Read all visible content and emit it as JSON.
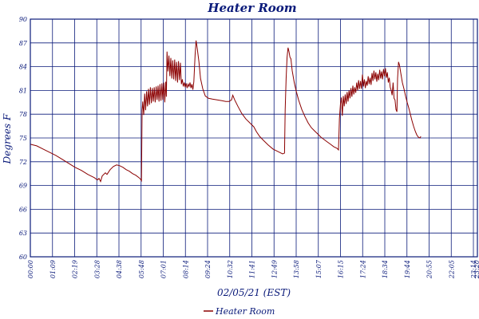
{
  "chart_data": {
    "type": "line",
    "title": "Heater Room",
    "xlabel": "02/05/21 (EST)",
    "ylabel": "Degrees F",
    "y_tick_labels": [
      "90",
      "87",
      "84",
      "81",
      "78",
      "75",
      "72",
      "69",
      "66",
      "63",
      "60"
    ],
    "y_tick_values": [
      90,
      87,
      84,
      81,
      78,
      75,
      72,
      69,
      66,
      63,
      60
    ],
    "x_tick_labels": [
      "00:00",
      "01:09",
      "02:19",
      "03:28",
      "04:38",
      "05:48",
      "07:01",
      "08:14",
      "09:24",
      "10:32",
      "11:41",
      "12:49",
      "13:58",
      "15:07",
      "16:15",
      "17:24",
      "18:34",
      "19:44",
      "20:55",
      "22:05",
      "23:14",
      "23:20"
    ],
    "ylim": [
      60,
      90
    ],
    "xlim": [
      0,
      1400
    ],
    "grid": true,
    "legend_position": "bottom-center",
    "series": [
      {
        "name": "Heater Room",
        "color": "#8b0000",
        "points": [
          [
            0,
            74.2
          ],
          [
            20,
            74.0
          ],
          [
            40,
            73.6
          ],
          [
            60,
            73.2
          ],
          [
            80,
            72.8
          ],
          [
            100,
            72.3
          ],
          [
            120,
            71.8
          ],
          [
            140,
            71.3
          ],
          [
            160,
            70.9
          ],
          [
            180,
            70.4
          ],
          [
            200,
            70.0
          ],
          [
            210,
            69.7
          ],
          [
            215,
            69.9
          ],
          [
            220,
            69.5
          ],
          [
            225,
            70.2
          ],
          [
            235,
            70.6
          ],
          [
            240,
            70.4
          ],
          [
            250,
            71.0
          ],
          [
            260,
            71.4
          ],
          [
            270,
            71.6
          ],
          [
            280,
            71.5
          ],
          [
            290,
            71.3
          ],
          [
            300,
            71.0
          ],
          [
            310,
            70.8
          ],
          [
            320,
            70.5
          ],
          [
            330,
            70.3
          ],
          [
            340,
            70.0
          ],
          [
            345,
            69.8
          ],
          [
            348,
            69.6
          ],
          [
            350,
            78.5
          ],
          [
            352,
            79.6
          ],
          [
            355,
            77.9
          ],
          [
            358,
            80.6
          ],
          [
            361,
            78.5
          ],
          [
            364,
            80.9
          ],
          [
            367,
            79.0
          ],
          [
            370,
            81.2
          ],
          [
            373,
            79.2
          ],
          [
            376,
            81.4
          ],
          [
            379,
            79.4
          ],
          [
            382,
            81.3
          ],
          [
            385,
            79.6
          ],
          [
            388,
            81.4
          ],
          [
            391,
            79.5
          ],
          [
            394,
            81.5
          ],
          [
            397,
            79.8
          ],
          [
            400,
            81.6
          ],
          [
            403,
            79.6
          ],
          [
            406,
            81.8
          ],
          [
            409,
            79.7
          ],
          [
            412,
            81.9
          ],
          [
            415,
            79.8
          ],
          [
            418,
            82.0
          ],
          [
            421,
            79.5
          ],
          [
            424,
            82.1
          ],
          [
            426,
            80.2
          ],
          [
            428,
            85.9
          ],
          [
            431,
            83.4
          ],
          [
            434,
            85.4
          ],
          [
            437,
            82.8
          ],
          [
            440,
            85.1
          ],
          [
            443,
            82.5
          ],
          [
            446,
            84.8
          ],
          [
            449,
            82.4
          ],
          [
            452,
            84.9
          ],
          [
            455,
            82.2
          ],
          [
            458,
            84.6
          ],
          [
            461,
            82.0
          ],
          [
            464,
            84.7
          ],
          [
            467,
            82.3
          ],
          [
            470,
            84.5
          ],
          [
            473,
            81.8
          ],
          [
            476,
            82.4
          ],
          [
            479,
            81.5
          ],
          [
            482,
            82.0
          ],
          [
            485,
            81.4
          ],
          [
            488,
            81.9
          ],
          [
            491,
            81.3
          ],
          [
            494,
            81.8
          ],
          [
            497,
            81.5
          ],
          [
            500,
            82.0
          ],
          [
            503,
            81.3
          ],
          [
            506,
            81.8
          ],
          [
            509,
            81.1
          ],
          [
            512,
            82.1
          ],
          [
            516,
            85.5
          ],
          [
            519,
            87.3
          ],
          [
            523,
            86.2
          ],
          [
            528,
            84.6
          ],
          [
            533,
            82.5
          ],
          [
            540,
            81.2
          ],
          [
            548,
            80.3
          ],
          [
            558,
            80.0
          ],
          [
            570,
            79.9
          ],
          [
            585,
            79.8
          ],
          [
            600,
            79.7
          ],
          [
            612,
            79.6
          ],
          [
            622,
            79.6
          ],
          [
            630,
            79.8
          ],
          [
            634,
            80.4
          ],
          [
            640,
            79.8
          ],
          [
            650,
            79.0
          ],
          [
            662,
            78.1
          ],
          [
            675,
            77.4
          ],
          [
            690,
            76.8
          ],
          [
            700,
            76.4
          ],
          [
            708,
            75.8
          ],
          [
            718,
            75.2
          ],
          [
            730,
            74.7
          ],
          [
            745,
            74.1
          ],
          [
            760,
            73.6
          ],
          [
            775,
            73.3
          ],
          [
            790,
            73.0
          ],
          [
            796,
            73.1
          ],
          [
            798,
            78.5
          ],
          [
            801,
            82.5
          ],
          [
            804,
            85.2
          ],
          [
            807,
            86.4
          ],
          [
            810,
            85.9
          ],
          [
            813,
            85.2
          ],
          [
            816,
            85.0
          ],
          [
            820,
            83.5
          ],
          [
            826,
            82.1
          ],
          [
            832,
            81.0
          ],
          [
            840,
            79.8
          ],
          [
            850,
            78.6
          ],
          [
            860,
            77.7
          ],
          [
            870,
            76.9
          ],
          [
            880,
            76.3
          ],
          [
            890,
            75.9
          ],
          [
            900,
            75.5
          ],
          [
            910,
            75.1
          ],
          [
            920,
            74.8
          ],
          [
            930,
            74.5
          ],
          [
            940,
            74.2
          ],
          [
            950,
            73.9
          ],
          [
            960,
            73.7
          ],
          [
            965,
            73.5
          ],
          [
            968,
            77.5
          ],
          [
            971,
            79.2
          ],
          [
            974,
            80.1
          ],
          [
            977,
            77.8
          ],
          [
            980,
            80.3
          ],
          [
            983,
            79.0
          ],
          [
            986,
            80.5
          ],
          [
            989,
            79.3
          ],
          [
            992,
            80.8
          ],
          [
            995,
            79.6
          ],
          [
            998,
            81.0
          ],
          [
            1001,
            80.0
          ],
          [
            1004,
            81.3
          ],
          [
            1007,
            80.2
          ],
          [
            1010,
            81.6
          ],
          [
            1013,
            80.5
          ],
          [
            1016,
            81.4
          ],
          [
            1019,
            80.7
          ],
          [
            1022,
            82.0
          ],
          [
            1025,
            81.0
          ],
          [
            1028,
            82.3
          ],
          [
            1031,
            81.2
          ],
          [
            1034,
            82.2
          ],
          [
            1037,
            81.2
          ],
          [
            1040,
            83.0
          ],
          [
            1043,
            81.5
          ],
          [
            1046,
            82.4
          ],
          [
            1049,
            81.3
          ],
          [
            1052,
            82.2
          ],
          [
            1055,
            81.6
          ],
          [
            1058,
            82.8
          ],
          [
            1061,
            81.8
          ],
          [
            1064,
            82.6
          ],
          [
            1067,
            81.7
          ],
          [
            1070,
            83.2
          ],
          [
            1073,
            82.2
          ],
          [
            1076,
            83.5
          ],
          [
            1079,
            82.4
          ],
          [
            1082,
            83.3
          ],
          [
            1085,
            82.1
          ],
          [
            1088,
            83.1
          ],
          [
            1091,
            82.3
          ],
          [
            1094,
            83.6
          ],
          [
            1097,
            82.5
          ],
          [
            1100,
            83.4
          ],
          [
            1103,
            82.4
          ],
          [
            1106,
            83.7
          ],
          [
            1109,
            82.8
          ],
          [
            1112,
            83.8
          ],
          [
            1115,
            82.6
          ],
          [
            1118,
            83.3
          ],
          [
            1121,
            82.0
          ],
          [
            1124,
            82.6
          ],
          [
            1127,
            81.4
          ],
          [
            1130,
            81.0
          ],
          [
            1133,
            80.4
          ],
          [
            1136,
            82.0
          ],
          [
            1139,
            80.0
          ],
          [
            1142,
            79.8
          ],
          [
            1145,
            78.6
          ],
          [
            1148,
            78.3
          ],
          [
            1150,
            82.5
          ],
          [
            1153,
            84.6
          ],
          [
            1156,
            84.2
          ],
          [
            1160,
            83.2
          ],
          [
            1165,
            82.0
          ],
          [
            1170,
            81.2
          ],
          [
            1175,
            80.3
          ],
          [
            1180,
            79.5
          ],
          [
            1185,
            78.8
          ],
          [
            1190,
            78.0
          ],
          [
            1195,
            77.2
          ],
          [
            1200,
            76.5
          ],
          [
            1205,
            75.9
          ],
          [
            1210,
            75.4
          ],
          [
            1215,
            75.1
          ],
          [
            1220,
            75.0
          ],
          [
            1223,
            75.2
          ]
        ]
      }
    ]
  }
}
